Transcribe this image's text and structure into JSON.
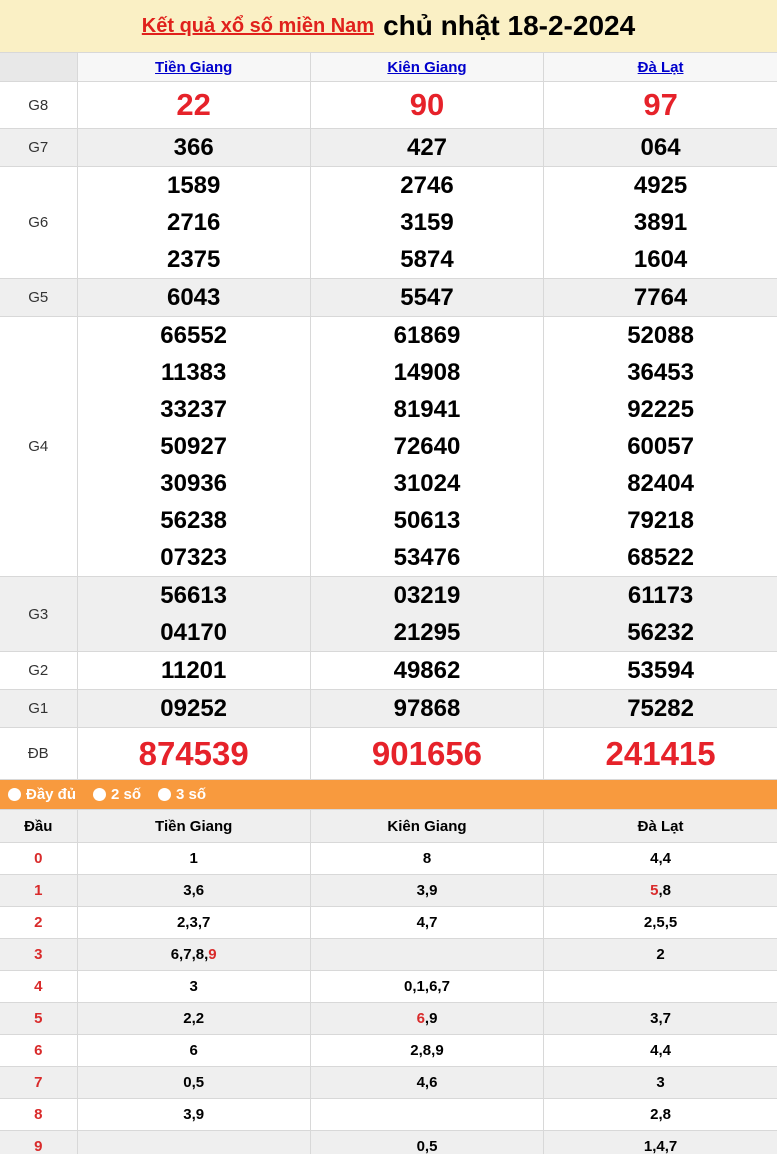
{
  "header": {
    "title_link": "Kết quả xổ số miền Nam",
    "title_date": "chủ nhật 18-2-2024"
  },
  "colors": {
    "header_bg": "#faf0c5",
    "title_link_red": "#e0211c",
    "number_red": "#e6222a",
    "tails_red": "#d92b2b",
    "province_link_blue": "#0000cc",
    "filter_bar_orange": "#f89a3e",
    "zebra_grey": "#efefef"
  },
  "results_table": {
    "provinces": [
      "Tiền Giang",
      "Kiên Giang",
      "Đà Lạt"
    ],
    "rows": [
      {
        "label": "G8",
        "style": "big-red",
        "cells": [
          [
            "22"
          ],
          [
            "90"
          ],
          [
            "97"
          ]
        ]
      },
      {
        "label": "G7",
        "style": "normal",
        "cells": [
          [
            "366"
          ],
          [
            "427"
          ],
          [
            "064"
          ]
        ]
      },
      {
        "label": "G6",
        "style": "normal",
        "cells": [
          [
            "1589",
            "2716",
            "2375"
          ],
          [
            "2746",
            "3159",
            "5874"
          ],
          [
            "4925",
            "3891",
            "1604"
          ]
        ]
      },
      {
        "label": "G5",
        "style": "normal",
        "cells": [
          [
            "6043"
          ],
          [
            "5547"
          ],
          [
            "7764"
          ]
        ]
      },
      {
        "label": "G4",
        "style": "normal",
        "cells": [
          [
            "66552",
            "11383",
            "33237",
            "50927",
            "30936",
            "56238",
            "07323"
          ],
          [
            "61869",
            "14908",
            "81941",
            "72640",
            "31024",
            "50613",
            "53476"
          ],
          [
            "52088",
            "36453",
            "92225",
            "60057",
            "82404",
            "79218",
            "68522"
          ]
        ]
      },
      {
        "label": "G3",
        "style": "normal",
        "cells": [
          [
            "56613",
            "04170"
          ],
          [
            "03219",
            "21295"
          ],
          [
            "61173",
            "56232"
          ]
        ]
      },
      {
        "label": "G2",
        "style": "normal",
        "cells": [
          [
            "11201"
          ],
          [
            "49862"
          ],
          [
            "53594"
          ]
        ]
      },
      {
        "label": "G1",
        "style": "normal",
        "cells": [
          [
            "09252"
          ],
          [
            "97868"
          ],
          [
            "75282"
          ]
        ]
      },
      {
        "label": "ĐB",
        "style": "jackpot-red",
        "cells": [
          [
            "874539"
          ],
          [
            "901656"
          ],
          [
            "241415"
          ]
        ]
      }
    ]
  },
  "filter_bar": {
    "options": [
      {
        "label": "Đầy đủ",
        "selected": false
      },
      {
        "label": "2 số",
        "selected": false
      },
      {
        "label": "3 số",
        "selected": false
      }
    ]
  },
  "tails_table": {
    "headers": [
      "Đầu",
      "Tiền Giang",
      "Kiên Giang",
      "Đà Lạt"
    ],
    "rows": [
      {
        "head": "0",
        "cells": [
          [
            {
              "text": "1"
            }
          ],
          [
            {
              "text": "8"
            }
          ],
          [
            {
              "text": "4,4"
            }
          ]
        ]
      },
      {
        "head": "1",
        "cells": [
          [
            {
              "text": "3,6"
            }
          ],
          [
            {
              "text": "3,9"
            }
          ],
          [
            {
              "text": "5",
              "red": true
            },
            {
              "text": ",8"
            }
          ]
        ]
      },
      {
        "head": "2",
        "cells": [
          [
            {
              "text": "2,3,7"
            }
          ],
          [
            {
              "text": "4,7"
            }
          ],
          [
            {
              "text": "2,5,5"
            }
          ]
        ]
      },
      {
        "head": "3",
        "cells": [
          [
            {
              "text": "6,7,8,"
            },
            {
              "text": "9",
              "red": true
            }
          ],
          [],
          [
            {
              "text": "2"
            }
          ]
        ]
      },
      {
        "head": "4",
        "cells": [
          [
            {
              "text": "3"
            }
          ],
          [
            {
              "text": "0,1,6,7"
            }
          ],
          []
        ]
      },
      {
        "head": "5",
        "cells": [
          [
            {
              "text": "2,2"
            }
          ],
          [
            {
              "text": "6",
              "red": true
            },
            {
              "text": ",9"
            }
          ],
          [
            {
              "text": "3,7"
            }
          ]
        ]
      },
      {
        "head": "6",
        "cells": [
          [
            {
              "text": "6"
            }
          ],
          [
            {
              "text": "2,8,9"
            }
          ],
          [
            {
              "text": "4,4"
            }
          ]
        ]
      },
      {
        "head": "7",
        "cells": [
          [
            {
              "text": "0,5"
            }
          ],
          [
            {
              "text": "4,6"
            }
          ],
          [
            {
              "text": "3"
            }
          ]
        ]
      },
      {
        "head": "8",
        "cells": [
          [
            {
              "text": "3,9"
            }
          ],
          [],
          [
            {
              "text": "2,8"
            }
          ]
        ]
      },
      {
        "head": "9",
        "cells": [
          [],
          [
            {
              "text": "0,5"
            }
          ],
          [
            {
              "text": "1,4,7"
            }
          ]
        ]
      }
    ]
  }
}
